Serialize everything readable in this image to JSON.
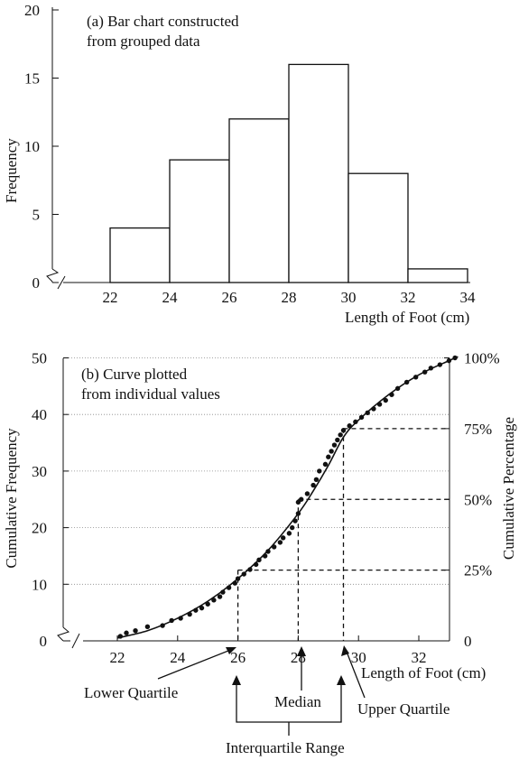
{
  "chart_data": [
    {
      "type": "bar",
      "title": "(a) Bar chart constructed",
      "subtitle": "from grouped data",
      "xlabel": "Length of Foot (cm)",
      "ylabel": "Frequency",
      "bins": [
        {
          "from": 22,
          "to": 24,
          "value": 4
        },
        {
          "from": 24,
          "to": 26,
          "value": 9
        },
        {
          "from": 26,
          "to": 28,
          "value": 12
        },
        {
          "from": 28,
          "to": 30,
          "value": 16
        },
        {
          "from": 30,
          "to": 32,
          "value": 8
        },
        {
          "from": 32,
          "to": 34,
          "value": 1
        }
      ],
      "xticks": [
        "22",
        "24",
        "26",
        "28",
        "30",
        "32",
        "34"
      ],
      "yticks": [
        "0",
        "5",
        "10",
        "15",
        "20"
      ],
      "xlim": [
        20,
        34
      ],
      "ylim": [
        0,
        20
      ],
      "axis_break": true,
      "grid": false
    },
    {
      "type": "scatter",
      "title": "(b) Curve plotted",
      "subtitle": "from individual values",
      "xlabel": "Length of Foot (cm)",
      "ylabel": "Cumulative Frequency",
      "y2label": "Cumulative Percentage",
      "xticks": [
        "22",
        "24",
        "26",
        "28",
        "30",
        "32"
      ],
      "yticks": [
        "0",
        "10",
        "20",
        "30",
        "40",
        "50"
      ],
      "y2ticks": [
        "0",
        "25%",
        "50%",
        "75%",
        "100%"
      ],
      "xlim": [
        20,
        33.5
      ],
      "ylim": [
        0,
        50
      ],
      "grid": "horizontal dotted",
      "axis_break": true,
      "points": [
        [
          22.1,
          0.8
        ],
        [
          22.3,
          1.4
        ],
        [
          22.6,
          1.8
        ],
        [
          23.0,
          2.5
        ],
        [
          23.5,
          2.7
        ],
        [
          23.8,
          3.6
        ],
        [
          24.1,
          4.0
        ],
        [
          24.4,
          4.7
        ],
        [
          24.6,
          5.4
        ],
        [
          24.8,
          5.8
        ],
        [
          25.0,
          6.5
        ],
        [
          25.2,
          7.2
        ],
        [
          25.4,
          7.8
        ],
        [
          25.5,
          8.6
        ],
        [
          25.7,
          9.4
        ],
        [
          25.9,
          10.2
        ],
        [
          26.0,
          11.0
        ],
        [
          26.2,
          11.8
        ],
        [
          26.4,
          12.6
        ],
        [
          26.6,
          13.5
        ],
        [
          26.7,
          14.3
        ],
        [
          26.9,
          15.0
        ],
        [
          27.0,
          15.8
        ],
        [
          27.2,
          16.6
        ],
        [
          27.4,
          17.4
        ],
        [
          27.5,
          18.2
        ],
        [
          27.7,
          19.0
        ],
        [
          27.8,
          20.0
        ],
        [
          27.9,
          21.2
        ],
        [
          28.0,
          22.5
        ],
        [
          28.0,
          24.5
        ],
        [
          28.1,
          25.0
        ],
        [
          28.3,
          26.0
        ],
        [
          28.5,
          27.5
        ],
        [
          28.6,
          28.5
        ],
        [
          28.7,
          30.0
        ],
        [
          28.9,
          31.2
        ],
        [
          29.0,
          32.5
        ],
        [
          29.1,
          33.5
        ],
        [
          29.2,
          34.6
        ],
        [
          29.3,
          35.5
        ],
        [
          29.4,
          36.4
        ],
        [
          29.5,
          37.2
        ],
        [
          29.7,
          38.0
        ],
        [
          29.9,
          38.7
        ],
        [
          30.1,
          39.5
        ],
        [
          30.3,
          40.3
        ],
        [
          30.5,
          41.0
        ],
        [
          30.7,
          41.8
        ],
        [
          30.9,
          42.5
        ],
        [
          31.1,
          43.5
        ],
        [
          31.3,
          44.6
        ],
        [
          31.6,
          45.7
        ],
        [
          31.9,
          46.6
        ],
        [
          32.2,
          47.5
        ],
        [
          32.4,
          48.2
        ],
        [
          32.7,
          48.8
        ],
        [
          33.0,
          49.5
        ],
        [
          33.2,
          50.0
        ]
      ],
      "curve": [
        [
          22.0,
          0.5
        ],
        [
          23.0,
          1.8
        ],
        [
          24.0,
          4.0
        ],
        [
          25.0,
          7.0
        ],
        [
          26.0,
          11.0
        ],
        [
          27.0,
          16.0
        ],
        [
          28.0,
          22.5
        ],
        [
          28.5,
          26.5
        ],
        [
          29.0,
          31.0
        ],
        [
          29.5,
          36.0
        ],
        [
          30.0,
          39.0
        ],
        [
          31.0,
          43.5
        ],
        [
          32.0,
          47.0
        ],
        [
          33.0,
          49.5
        ],
        [
          33.3,
          50.2
        ]
      ],
      "quartile_lines": [
        {
          "y": 12.5,
          "x": 26.0
        },
        {
          "y": 25.0,
          "x": 28.0
        },
        {
          "y": 37.5,
          "x": 29.5
        }
      ],
      "annotations": {
        "lower_quartile": "Lower Quartile",
        "median": "Median",
        "upper_quartile": "Upper Quartile",
        "interquartile_range": "Interquartile Range"
      }
    }
  ]
}
